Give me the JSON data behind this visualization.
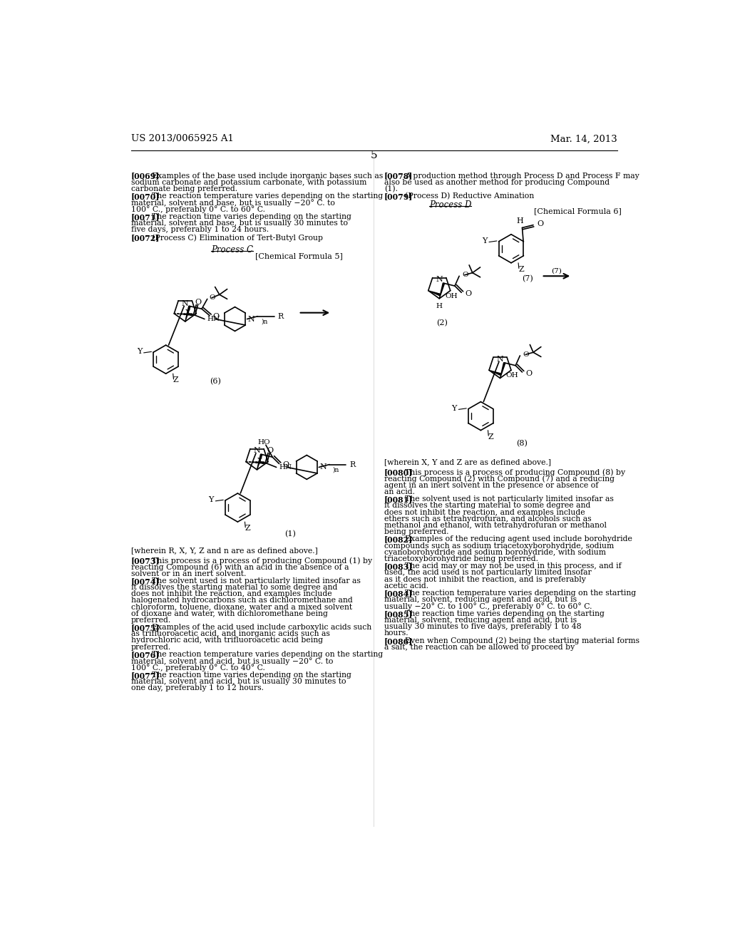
{
  "background_color": "#ffffff",
  "page_number": "5",
  "header_left": "US 2013/0065925 A1",
  "header_right": "Mar. 14, 2013",
  "left_paragraphs_top": [
    {
      "tag": "[0069]",
      "text": "Examples of the base used include inorganic bases such as sodium carbonate and potassium carbonate, with potassium carbonate being preferred."
    },
    {
      "tag": "[0070]",
      "text": "The reaction temperature varies depending on the starting material, solvent and base, but is usually −20° C. to 100° C., preferably 0° C. to 60° C."
    },
    {
      "tag": "[0071]",
      "text": "The reaction time varies depending on the starting material, solvent and base, but is usually 30 minutes to five days, preferably 1 to 24 hours."
    },
    {
      "tag": "[0072]",
      "text": "(Process C) Elimination of Tert-Butyl Group"
    }
  ],
  "left_paragraphs_bottom": [
    {
      "tag": "[0073]",
      "text": "This process is a process of producing Compound (1) by reacting Compound (6) with an acid in the absence of a solvent or in an inert solvent."
    },
    {
      "tag": "[0074]",
      "text": "The solvent used is not particularly limited insofar as it dissolves the starting material to some degree and does not inhibit the reaction, and examples include halogenated hydrocarbons such as dichloromethane and chloroform, toluene, dioxane, water and a mixed solvent of dioxane and water, with dichloromethane being preferred."
    },
    {
      "tag": "[0075]",
      "text": "Examples of the acid used include carboxylic acids such as trifluoroacetic acid, and inorganic acids such as hydrochloric acid, with trifluoroacetic acid being preferred."
    },
    {
      "tag": "[0076]",
      "text": "The reaction temperature varies depending on the starting material, solvent and acid, but is usually −20° C. to 100° C., preferably 0° C. to 40° C."
    },
    {
      "tag": "[0077]",
      "text": "The reaction time varies depending on the starting material, solvent and acid, but is usually 30 minutes to one day, preferably 1 to 12 hours."
    }
  ],
  "right_paragraphs_top": [
    {
      "tag": "[0078]",
      "text": "A production method through Process D and Process F may also be used as another method for producing Compound (1)."
    },
    {
      "tag": "[0079]",
      "text": "(Process D) Reductive Amination"
    }
  ],
  "right_paragraphs_bottom": [
    {
      "tag": "[0080]",
      "text": "This process is a process of producing Compound (8) by reacting Compound (2) with Compound (7) and a reducing agent in an inert solvent in the presence or absence of an acid."
    },
    {
      "tag": "[0081]",
      "text": "The solvent used is not particularly limited insofar as it dissolves the starting material to some degree and does not inhibit the reaction, and examples include ethers such as tetrahydrofuran, and alcohols such as methanol and ethanol, with tetrahydrofuran or methanol being preferred."
    },
    {
      "tag": "[0082]",
      "text": "Examples of the reducing agent used include borohydride compounds such as sodium triacetoxyborohydride, sodium cyanoborohydride and sodium borohydride, with sodium triacetoxyborohydride being preferred."
    },
    {
      "tag": "[0083]",
      "text": "The acid may or may not be used in this process, and if used, the acid used is not particularly limited insofar as it does not inhibit the reaction, and is preferably acetic acid."
    },
    {
      "tag": "[0084]",
      "text": "The reaction temperature varies depending on the starting material, solvent, reducing agent and acid, but is usually −20° C. to 100° C., preferably 0° C. to 60° C."
    },
    {
      "tag": "[0085]",
      "text": "The reaction time varies depending on the starting material, solvent, reducing agent and acid, but is usually 30 minutes to five days, preferably 1 to 48 hours."
    },
    {
      "tag": "[0086]",
      "text": "Even when Compound (2) being the starting material forms a salt, the reaction can be allowed to proceed by"
    }
  ],
  "wherein_left": "[wherein R, X, Y, Z and n are as defined above.]",
  "wherein_right": "[wherein X, Y and Z are as defined above.]",
  "process_c_label": "Process C",
  "process_d_label": "Process D",
  "chem_formula_5": "[Chemical Formula 5]",
  "chem_formula_6": "[Chemical Formula 6]"
}
